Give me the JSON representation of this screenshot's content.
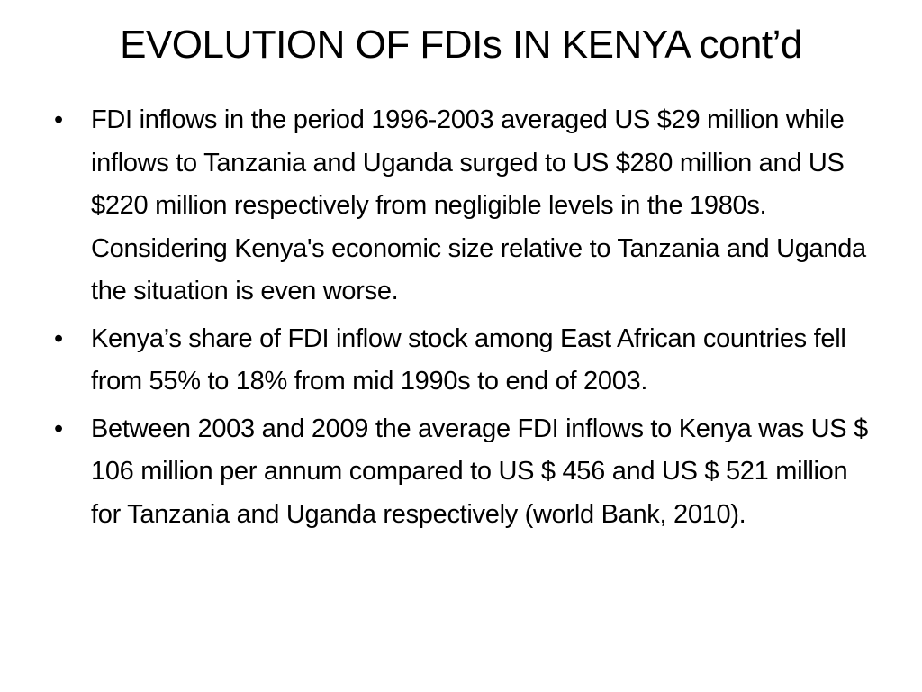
{
  "slide": {
    "title": "EVOLUTION OF FDIs IN KENYA cont’d",
    "bullet_symbol": "•",
    "bullets": [
      "FDI inflows in the period 1996-2003 averaged US $29 million while inflows to Tanzania and Uganda surged to US $280 million and US $220 million respectively from negligible levels in the 1980s. Considering Kenya's economic size relative to Tanzania and Uganda the situation is even worse.",
      "Kenya’s share of FDI inflow stock among East African countries fell from 55% to 18% from mid 1990s to end of 2003.",
      "Between 2003 and 2009 the average FDI inflows to Kenya was US $ 106 million per annum compared to US $ 456 and US $ 521 million for Tanzania and Uganda respectively (world Bank, 2010)."
    ]
  }
}
